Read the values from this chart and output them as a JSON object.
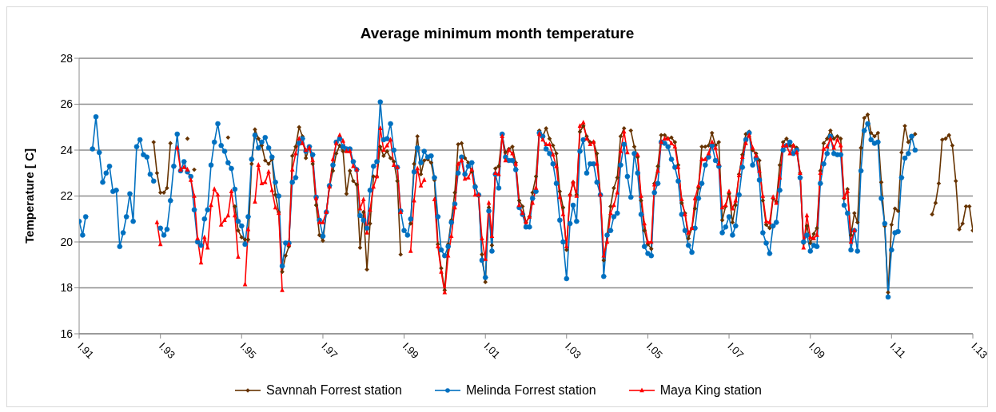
{
  "chart_data": {
    "type": "line",
    "title": "Average minimum month temperature",
    "ylabel": "Temperature [ C]",
    "x": [
      "1991-01",
      "1991-02",
      "1991-03",
      "1991-04",
      "1991-05",
      "1991-06",
      "1991-07",
      "1991-08",
      "1991-09",
      "1991-10",
      "1991-11",
      "1991-12",
      "1992-01",
      "1992-02",
      "1992-03",
      "1992-04",
      "1992-05",
      "1992-06",
      "1992-07",
      "1992-08",
      "1992-09",
      "1992-10",
      "1992-11",
      "1992-12",
      "1993-01",
      "1993-02",
      "1993-03",
      "1993-04",
      "1993-05",
      "1993-06",
      "1993-07",
      "1993-08",
      "1993-09",
      "1993-10",
      "1993-11",
      "1993-12",
      "1994-01",
      "1994-02",
      "1994-03",
      "1994-04",
      "1994-05",
      "1994-06",
      "1994-07",
      "1994-08",
      "1994-09",
      "1994-10",
      "1994-11",
      "1994-12",
      "1995-01",
      "1995-02",
      "1995-03",
      "1995-04",
      "1995-05",
      "1995-06",
      "1995-07",
      "1995-08",
      "1995-09",
      "1995-10",
      "1995-11",
      "1995-12",
      "1996-01",
      "1996-02",
      "1996-03",
      "1996-04",
      "1996-05",
      "1996-06",
      "1996-07",
      "1996-08",
      "1996-09",
      "1996-10",
      "1996-11",
      "1996-12",
      "1997-01",
      "1997-02",
      "1997-03",
      "1997-04",
      "1997-05",
      "1997-06",
      "1997-07",
      "1997-08",
      "1997-09",
      "1997-10",
      "1997-11",
      "1997-12",
      "1998-01",
      "1998-02",
      "1998-03",
      "1998-04",
      "1998-05",
      "1998-06",
      "1998-07",
      "1998-08",
      "1998-09",
      "1998-10",
      "1998-11",
      "1998-12",
      "1999-01",
      "1999-02",
      "1999-03",
      "1999-04",
      "1999-05",
      "1999-06",
      "1999-07",
      "1999-08",
      "1999-09",
      "1999-10",
      "1999-11",
      "1999-12",
      "2000-01",
      "2000-02",
      "2000-03",
      "2000-04",
      "2000-05",
      "2000-06",
      "2000-07",
      "2000-08",
      "2000-09",
      "2000-10",
      "2000-11",
      "2000-12",
      "2001-01",
      "2001-02",
      "2001-03",
      "2001-04",
      "2001-05",
      "2001-06",
      "2001-07",
      "2001-08",
      "2001-09",
      "2001-10",
      "2001-11",
      "2001-12",
      "2002-01",
      "2002-02",
      "2002-03",
      "2002-04",
      "2002-05",
      "2002-06",
      "2002-07",
      "2002-08",
      "2002-09",
      "2002-10",
      "2002-11",
      "2002-12",
      "2003-01",
      "2003-02",
      "2003-03",
      "2003-04",
      "2003-05",
      "2003-06",
      "2003-07",
      "2003-08",
      "2003-09",
      "2003-10",
      "2003-11",
      "2003-12",
      "2004-01",
      "2004-02",
      "2004-03",
      "2004-04",
      "2004-05",
      "2004-06",
      "2004-07",
      "2004-08",
      "2004-09",
      "2004-10",
      "2004-11",
      "2004-12",
      "2005-01",
      "2005-02",
      "2005-03",
      "2005-04",
      "2005-05",
      "2005-06",
      "2005-07",
      "2005-08",
      "2005-09",
      "2005-10",
      "2005-11",
      "2005-12",
      "2006-01",
      "2006-02",
      "2006-03",
      "2006-04",
      "2006-05",
      "2006-06",
      "2006-07",
      "2006-08",
      "2006-09",
      "2006-10",
      "2006-11",
      "2006-12",
      "2007-01",
      "2007-02",
      "2007-03",
      "2007-04",
      "2007-05",
      "2007-06",
      "2007-07",
      "2007-08",
      "2007-09",
      "2007-10",
      "2007-11",
      "2007-12",
      "2008-01",
      "2008-02",
      "2008-03",
      "2008-04",
      "2008-05",
      "2008-06",
      "2008-07",
      "2008-08",
      "2008-09",
      "2008-10",
      "2008-11",
      "2008-12",
      "2009-01",
      "2009-02",
      "2009-03",
      "2009-04",
      "2009-05",
      "2009-06",
      "2009-07",
      "2009-08",
      "2009-09",
      "2009-10",
      "2009-11",
      "2009-12",
      "2010-01",
      "2010-02",
      "2010-03",
      "2010-04",
      "2010-05",
      "2010-06",
      "2010-07",
      "2010-08",
      "2010-09",
      "2010-10",
      "2010-11",
      "2010-12",
      "2011-01",
      "2011-02",
      "2011-03",
      "2011-04",
      "2011-05",
      "2011-06",
      "2011-07",
      "2011-08",
      "2011-09",
      "2011-10",
      "2011-11",
      "2011-12",
      "2012-01",
      "2012-02",
      "2012-03",
      "2012-04",
      "2012-05",
      "2012-06",
      "2012-07",
      "2012-08",
      "2012-09",
      "2012-10",
      "2012-11",
      "2012-12",
      "2013-01"
    ],
    "series": [
      {
        "name": "Savnnah Forrest station",
        "color": "#663300",
        "marker": "diamond",
        "values": [
          null,
          null,
          null,
          null,
          null,
          null,
          null,
          null,
          null,
          null,
          null,
          null,
          null,
          null,
          null,
          null,
          null,
          null,
          null,
          null,
          null,
          null,
          24.35,
          23.0,
          22.15,
          22.15,
          22.35,
          24.3,
          null,
          null,
          null,
          null,
          24.5,
          null,
          23.15,
          null,
          null,
          null,
          null,
          null,
          null,
          null,
          null,
          null,
          24.55,
          null,
          21.55,
          20.5,
          20.2,
          20.1,
          20.1,
          23.4,
          24.9,
          24.5,
          24.2,
          23.55,
          23.4,
          23.6,
          22.05,
          21.3,
          18.7,
          19.4,
          19.8,
          23.75,
          24.15,
          25.0,
          24.6,
          23.65,
          24.15,
          23.4,
          21.6,
          20.3,
          20.05,
          21.3,
          22.4,
          23.1,
          23.85,
          24.2,
          23.95,
          22.1,
          23.1,
          22.65,
          22.5,
          19.75,
          21.3,
          18.8,
          20.8,
          22.85,
          22.85,
          24.15,
          23.75,
          23.95,
          23.65,
          23.5,
          22.65,
          19.45,
          null,
          null,
          20.8,
          23.4,
          24.6,
          22.95,
          23.55,
          23.6,
          23.45,
          22.7,
          19.9,
          18.85,
          17.9,
          19.9,
          20.95,
          22.15,
          24.25,
          24.3,
          23.65,
          23.45,
          23.05,
          22.45,
          22.0,
          19.45,
          18.25,
          21.5,
          19.85,
          23.2,
          23.3,
          24.65,
          23.9,
          24.05,
          24.15,
          23.45,
          21.8,
          21.55,
          20.85,
          21.1,
          22.15,
          22.85,
          24.85,
          24.6,
          24.95,
          24.5,
          24.2,
          23.85,
          22.2,
          21.5,
          19.65,
          22.05,
          22.6,
          22.05,
          24.8,
          25.05,
          24.6,
          24.35,
          24.35,
          23.85,
          22.05,
          19.2,
          20.3,
          21.55,
          22.35,
          22.8,
          24.6,
          24.95,
          null,
          24.85,
          24.15,
          23.7,
          21.8,
          20.5,
          19.9,
          19.7,
          22.55,
          23.3,
          24.65,
          24.65,
          24.5,
          24.55,
          24.35,
          23.35,
          21.7,
          21.25,
          20.15,
          20.6,
          21.45,
          22.35,
          24.15,
          24.15,
          24.2,
          24.75,
          24.2,
          24.35,
          20.95,
          21.55,
          22.1,
          20.85,
          21.6,
          22.95,
          23.8,
          24.7,
          24.8,
          24.0,
          23.85,
          23.55,
          21.8,
          20.75,
          20.6,
          21.9,
          21.75,
          23.35,
          24.35,
          24.5,
          24.2,
          24.2,
          24.1,
          23.0,
          19.95,
          20.7,
          19.95,
          20.35,
          20.6,
          23.1,
          24.3,
          24.5,
          24.85,
          24.5,
          24.6,
          24.5,
          21.9,
          22.3,
          20.3,
          21.25,
          20.85,
          24.1,
          25.4,
          25.55,
          24.75,
          24.6,
          24.75,
          22.6,
          20.7,
          17.8,
          20.75,
          21.45,
          21.35,
          23.9,
          25.05,
          24.35,
          24.55,
          24.7,
          null,
          null,
          null,
          null,
          21.2,
          21.7,
          22.55,
          24.45,
          24.5,
          24.65,
          24.2,
          22.65,
          20.55,
          20.8,
          21.55,
          21.55,
          20.5
        ]
      },
      {
        "name": "Melinda Forrest station",
        "color": "#0070c0",
        "marker": "circle",
        "values": [
          20.9,
          20.3,
          21.1,
          null,
          24.05,
          25.45,
          23.9,
          22.6,
          23.0,
          23.3,
          22.2,
          22.25,
          19.8,
          20.4,
          21.1,
          22.1,
          20.9,
          24.15,
          24.45,
          23.8,
          23.7,
          22.95,
          22.65,
          null,
          20.6,
          20.3,
          20.55,
          21.8,
          23.3,
          24.7,
          23.1,
          23.5,
          23.05,
          22.85,
          21.4,
          20.0,
          19.85,
          21.0,
          21.4,
          23.35,
          24.35,
          25.15,
          24.2,
          23.95,
          23.45,
          23.2,
          22.3,
          20.9,
          20.7,
          19.9,
          21.1,
          23.6,
          24.65,
          24.1,
          24.35,
          24.55,
          24.1,
          23.7,
          22.6,
          22.0,
          18.95,
          19.95,
          19.95,
          22.6,
          22.8,
          24.3,
          24.5,
          23.95,
          24.15,
          23.8,
          21.95,
          20.95,
          20.25,
          21.3,
          22.45,
          23.35,
          24.35,
          24.5,
          24.15,
          24.05,
          24.05,
          23.5,
          23.15,
          21.15,
          20.95,
          20.6,
          22.25,
          23.3,
          23.5,
          26.1,
          24.45,
          24.5,
          25.15,
          24.0,
          23.25,
          21.35,
          20.5,
          20.3,
          21.0,
          23.05,
          24.1,
          23.45,
          23.95,
          23.7,
          23.75,
          22.8,
          21.1,
          19.65,
          19.4,
          19.8,
          20.85,
          21.65,
          23.0,
          23.7,
          22.95,
          23.3,
          23.45,
          22.4,
          22.05,
          19.2,
          18.45,
          21.35,
          19.6,
          22.95,
          22.35,
          24.7,
          23.7,
          23.55,
          23.55,
          23.15,
          21.5,
          21.2,
          20.65,
          20.65,
          21.9,
          22.2,
          24.75,
          24.6,
          24.05,
          23.85,
          23.4,
          22.55,
          20.95,
          20.0,
          18.4,
          20.8,
          21.6,
          20.9,
          23.95,
          24.45,
          23.0,
          23.4,
          23.4,
          22.6,
          22.05,
          18.5,
          20.3,
          20.5,
          21.1,
          21.25,
          23.35,
          24.25,
          22.85,
          21.95,
          23.85,
          23.0,
          21.2,
          19.8,
          19.5,
          19.4,
          22.15,
          22.55,
          24.35,
          24.3,
          24.15,
          23.6,
          23.25,
          22.65,
          21.2,
          20.5,
          19.85,
          19.55,
          20.6,
          21.9,
          22.55,
          23.35,
          23.7,
          24.2,
          23.55,
          23.3,
          20.4,
          20.65,
          21.1,
          20.3,
          20.7,
          22.05,
          23.25,
          24.45,
          24.75,
          23.35,
          23.65,
          22.7,
          20.4,
          19.95,
          19.5,
          20.7,
          20.85,
          22.25,
          24.0,
          24.2,
          24.35,
          23.85,
          24.0,
          22.8,
          20.0,
          20.3,
          19.6,
          19.85,
          19.8,
          22.55,
          23.4,
          23.85,
          24.6,
          23.85,
          23.8,
          23.8,
          21.6,
          21.25,
          19.65,
          20.5,
          19.6,
          23.1,
          24.85,
          25.15,
          24.45,
          24.3,
          24.35,
          21.9,
          20.8,
          17.6,
          19.65,
          20.4,
          20.45,
          22.8,
          23.65,
          23.85,
          24.6,
          24.0,
          null,
          null,
          null,
          null,
          null,
          null,
          null,
          null,
          null,
          null,
          null,
          null,
          null,
          null,
          null,
          null,
          null
        ]
      },
      {
        "name": "Maya King station",
        "color": "#ff0000",
        "marker": "triangle",
        "values": [
          null,
          null,
          null,
          null,
          null,
          null,
          null,
          null,
          null,
          null,
          null,
          null,
          null,
          null,
          null,
          null,
          null,
          null,
          null,
          null,
          null,
          null,
          null,
          20.85,
          19.9,
          null,
          null,
          null,
          null,
          24.1,
          23.15,
          23.25,
          23.15,
          22.7,
          22.0,
          20.15,
          19.1,
          20.2,
          19.75,
          21.6,
          22.3,
          22.05,
          20.75,
          20.95,
          21.15,
          22.2,
          21.15,
          19.35,
          null,
          18.15,
          20.55,
          null,
          21.75,
          23.35,
          22.55,
          22.6,
          23.05,
          22.25,
          21.5,
          21.25,
          17.9,
          null,
          19.9,
          23.15,
          23.85,
          24.5,
          24.3,
          24.0,
          24.1,
          23.55,
          21.9,
          20.85,
          20.85,
          21.3,
          22.4,
          23.6,
          24.3,
          24.65,
          24.4,
          23.95,
          23.95,
          23.3,
          23.15,
          21.45,
          21.85,
          20.4,
          21.4,
          22.4,
          22.85,
          24.95,
          24.0,
          24.2,
          24.45,
          23.35,
          23.25,
          21.3,
          null,
          null,
          19.6,
          21.8,
          23.2,
          22.45,
          22.7,
          null,
          null,
          21.85,
          19.8,
          18.7,
          17.8,
          19.4,
          20.25,
          21.5,
          23.4,
          23.55,
          22.75,
          22.8,
          23.15,
          22.05,
          22.05,
          20.15,
          19.25,
          21.7,
          20.25,
          23.0,
          22.95,
          24.6,
          23.55,
          24.0,
          23.85,
          23.4,
          21.6,
          21.25,
          20.85,
          21.1,
          21.7,
          22.35,
          24.7,
          24.45,
          24.25,
          24.25,
          23.8,
          23.3,
          21.95,
          21.2,
          19.8,
          22.05,
          22.6,
          22.0,
          25.05,
          25.2,
          24.5,
          24.25,
          24.35,
          23.4,
          22.05,
          19.4,
          20.0,
          21.25,
          21.6,
          22.15,
          23.95,
          24.8,
          23.9,
          null,
          null,
          23.8,
          22.0,
          20.8,
          20.0,
          20.0,
          22.5,
          23.1,
          24.35,
          24.5,
          24.5,
          24.3,
          24.15,
          23.25,
          21.85,
          21.2,
          20.4,
          20.6,
          21.9,
          22.45,
          23.6,
          23.6,
          23.85,
          24.35,
          24.1,
          23.4,
          21.5,
          21.6,
          22.2,
          21.45,
          21.8,
          22.9,
          23.7,
          24.3,
          24.65,
          24.1,
          23.75,
          23.1,
          22.0,
          20.9,
          20.85,
          21.95,
          21.7,
          22.8,
          24.2,
          24.2,
          23.85,
          24.2,
          23.9,
          23.0,
          19.75,
          21.15,
          20.2,
          20.15,
          20.3,
          23.0,
          24.05,
          24.15,
          24.5,
          24.1,
          24.45,
          24.2,
          21.95,
          22.2,
          20.0,
          20.5,
          null,
          null,
          null,
          null,
          null,
          null,
          null,
          null,
          null,
          null,
          null,
          null,
          null,
          null,
          null,
          null,
          null,
          null,
          null,
          null,
          null,
          null,
          null,
          null,
          null,
          null,
          null,
          null,
          null,
          null,
          null,
          null,
          null,
          null,
          null
        ]
      }
    ],
    "xlim": [
      "1991-01",
      "2013-01"
    ],
    "xticks": [
      {
        "value": "1991-01",
        "label": "I.91"
      },
      {
        "value": "1993-01",
        "label": "I.93"
      },
      {
        "value": "1995-01",
        "label": "I.95"
      },
      {
        "value": "1997-01",
        "label": "I.97"
      },
      {
        "value": "1999-01",
        "label": "I.99"
      },
      {
        "value": "2001-01",
        "label": "I.01"
      },
      {
        "value": "2003-01",
        "label": "I.03"
      },
      {
        "value": "2005-01",
        "label": "I.05"
      },
      {
        "value": "2007-01",
        "label": "I.07"
      },
      {
        "value": "2009-01",
        "label": "I.09"
      },
      {
        "value": "2011-01",
        "label": "I.11"
      },
      {
        "value": "2013-01",
        "label": "I.13"
      }
    ],
    "ylim": [
      16,
      28
    ],
    "yticks": [
      16,
      18,
      20,
      22,
      24,
      26,
      28
    ],
    "grid": "y",
    "legend": "bottom",
    "line_style": "solid"
  }
}
